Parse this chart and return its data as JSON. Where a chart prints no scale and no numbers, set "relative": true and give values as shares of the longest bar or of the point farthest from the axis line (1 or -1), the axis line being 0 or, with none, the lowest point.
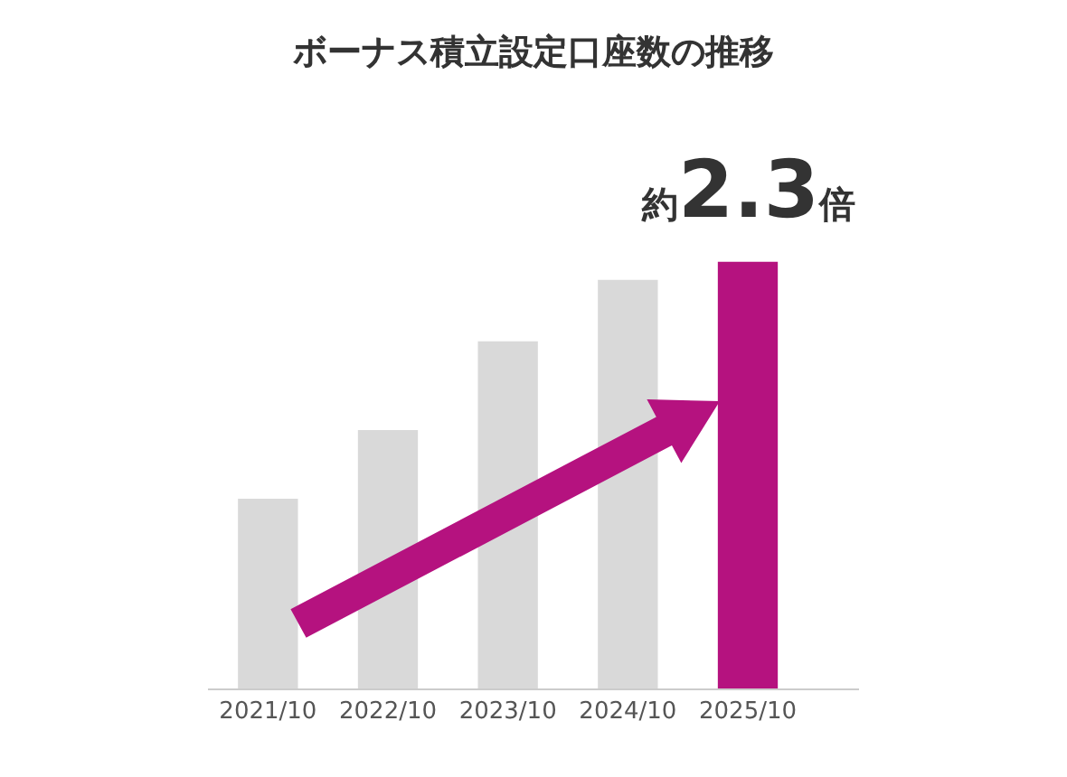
{
  "chart_data": {
    "type": "bar",
    "title": "ボーナス積立設定口座数の推移",
    "relative": true,
    "categories": [
      "2021/10",
      "2022/10",
      "2023/10",
      "2024/10",
      "2025/10"
    ],
    "values": [
      0.445,
      0.606,
      0.814,
      0.958,
      1
    ],
    "colors": [
      "#d9d9d9",
      "#d9d9d9",
      "#d9d9d9",
      "#d9d9d9",
      "#b5127f"
    ],
    "annotations": [
      "約2.3倍"
    ]
  }
}
